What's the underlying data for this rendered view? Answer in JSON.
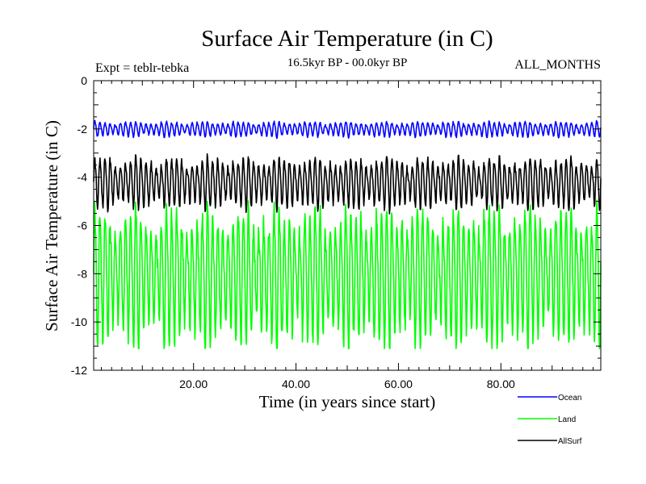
{
  "chart_data": {
    "type": "line",
    "title": "Surface Air Temperature (in C)",
    "subtitle": "16.5kyr BP - 00.0kyr BP",
    "left_note": "Expt = teblr-tebka",
    "right_note": "ALL_MONTHS",
    "xlabel": "Time (in years since start)",
    "ylabel": "Surface Air Temperature (in C)",
    "xlim": [
      0.5,
      99.5
    ],
    "ylim": [
      -12,
      0
    ],
    "xticks": [
      20,
      40,
      60,
      80
    ],
    "xtick_labels": [
      "20.00",
      "40.00",
      "60.00",
      "80.00"
    ],
    "yticks": [
      0,
      -2,
      -4,
      -6,
      -8,
      -10,
      -12
    ],
    "ytick_labels": [
      "0",
      "-2",
      "-4",
      "-6",
      "-8",
      "-10",
      "-12"
    ],
    "legend_position": "bottom-right, below plot",
    "series": [
      {
        "name": "Ocean",
        "color": "#0000ff",
        "mean": -2.0,
        "seasonal_amplitude": 0.25,
        "min": -2.6,
        "max": -1.4
      },
      {
        "name": "Land",
        "color": "#00ff00",
        "mean": -8.0,
        "seasonal_amplitude": 2.3,
        "min": -11.1,
        "max": -4.8
      },
      {
        "name": "AllSurf",
        "color": "#000000",
        "mean": -4.2,
        "seasonal_amplitude": 0.85,
        "min": -5.6,
        "max": -2.6
      }
    ]
  }
}
